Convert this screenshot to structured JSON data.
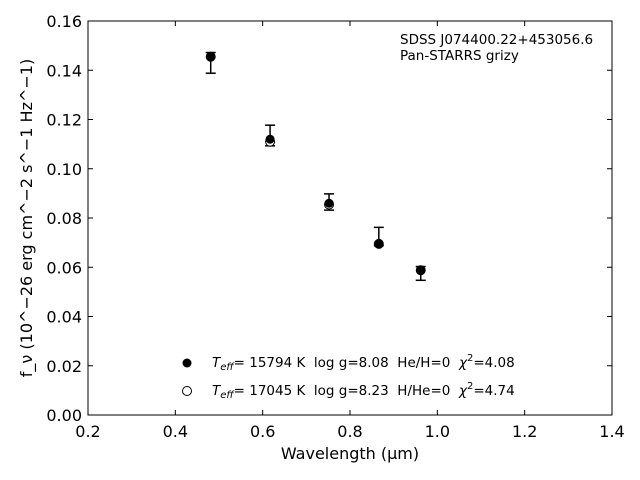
{
  "chart_data": {
    "type": "scatter",
    "xlabel": "Wavelength (μm)",
    "ylabel": "f_ν (10^−26 erg cm^−2 s^−1 Hz^−1)",
    "xlim": [
      0.2,
      1.4
    ],
    "ylim": [
      0.0,
      0.16
    ],
    "xticks": [
      0.2,
      0.4,
      0.6,
      0.8,
      1.0,
      1.2,
      1.4
    ],
    "yticks": [
      0.0,
      0.02,
      0.04,
      0.06,
      0.08,
      0.1,
      0.12,
      0.14,
      0.16
    ],
    "xtick_labels": [
      "0.2",
      "0.4",
      "0.6",
      "0.8",
      "1.0",
      "1.2",
      "1.4"
    ],
    "ytick_labels": [
      "0.00",
      "0.02",
      "0.04",
      "0.06",
      "0.08",
      "0.10",
      "0.12",
      "0.14",
      "0.16"
    ],
    "grid": false,
    "annotations": [
      "SDSS J074400.22+453056.6",
      "Pan-STARRS grizy"
    ],
    "observed": {
      "x": [
        0.481,
        0.617,
        0.752,
        0.866,
        0.962
      ],
      "y": [
        0.143,
        0.1135,
        0.0865,
        0.0725,
        0.0575
      ],
      "yerr": [
        0.0042,
        0.0042,
        0.0033,
        0.0037,
        0.0028
      ]
    },
    "series": [
      {
        "name": "T_eff= 15794 K  log g=8.08  He/H=0  χ²=4.08",
        "marker": "filled-circle",
        "x": [
          0.481,
          0.617,
          0.752,
          0.866,
          0.962
        ],
        "y": [
          0.1455,
          0.112,
          0.086,
          0.0695,
          0.0588
        ]
      },
      {
        "name": "T_eff= 17045 K  log g=8.23  H/He=0  χ²=4.74",
        "marker": "open-circle",
        "x": [
          0.481,
          0.617,
          0.752,
          0.866,
          0.962
        ],
        "y": [
          0.1455,
          0.111,
          0.0855,
          0.0695,
          0.0588
        ]
      }
    ],
    "legend": {
      "placement": "lower-center",
      "entries": [
        {
          "teff_sym": "T",
          "teff_sub": "eff",
          "text": "= 15794 K  log g=8.08  He/H=0  ",
          "chi": "χ",
          "sup": "2",
          "tail": "=4.08"
        },
        {
          "teff_sym": "T",
          "teff_sub": "eff",
          "text": "= 17045 K  log g=8.23  H/He=0  ",
          "chi": "χ",
          "sup": "2",
          "tail": "=4.74"
        }
      ]
    },
    "colors": {
      "marker": "#000000",
      "open_fill": "#ffffff"
    }
  }
}
